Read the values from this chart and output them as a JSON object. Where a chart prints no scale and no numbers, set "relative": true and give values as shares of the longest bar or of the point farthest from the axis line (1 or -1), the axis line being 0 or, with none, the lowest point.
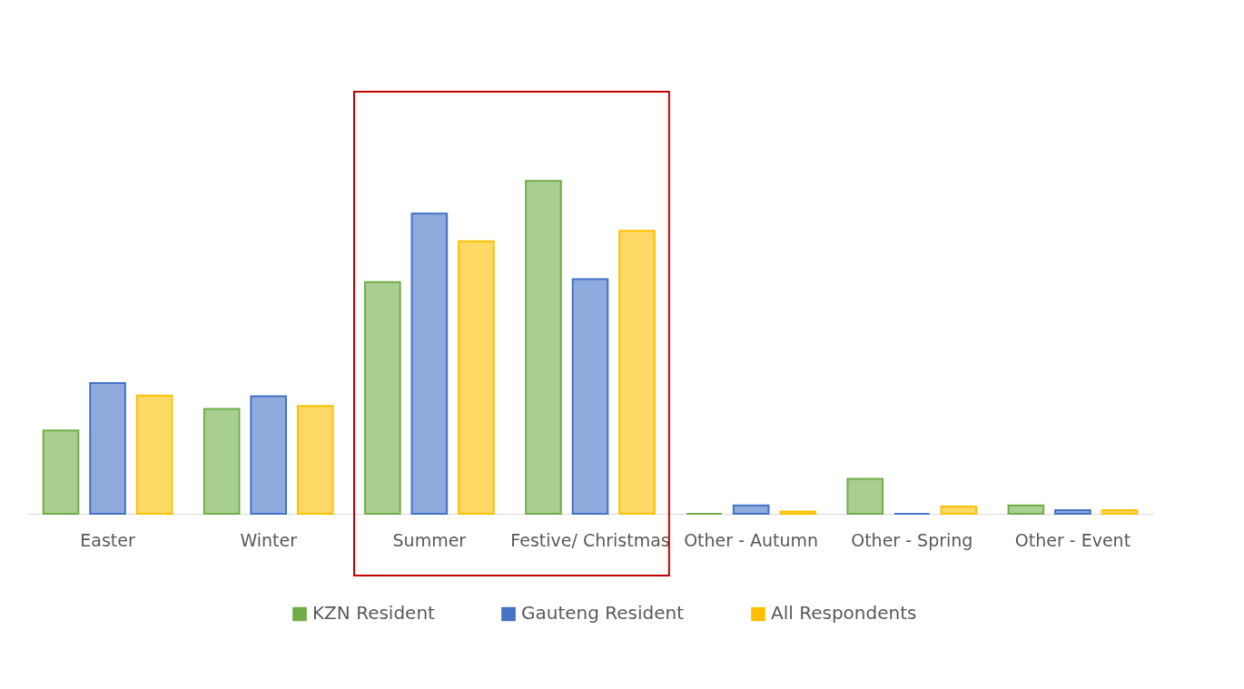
{
  "chart_data": {
    "type": "bar",
    "relative": true,
    "categories": [
      "Easter",
      "Winter",
      "Summer",
      "Festive/ Christmas",
      "Other - Autumn",
      "Other - Spring",
      "Other - Event"
    ],
    "series": [
      {
        "name": "KZN Resident",
        "color": "#70ad47",
        "values": [
          0.25,
          0.315,
          0.696,
          1.0,
          0,
          0.105,
          0.025
        ]
      },
      {
        "name": "Gauteng Resident",
        "color": "#4472c4",
        "values": [
          0.393,
          0.353,
          0.902,
          0.705,
          0.025,
          0,
          0.011
        ]
      },
      {
        "name": "All Respondents",
        "color": "#ffc000",
        "values": [
          0.355,
          0.324,
          0.819,
          0.85,
          0.007,
          0.022,
          0.011
        ]
      }
    ],
    "legend": "bottom",
    "grid": false
  }
}
